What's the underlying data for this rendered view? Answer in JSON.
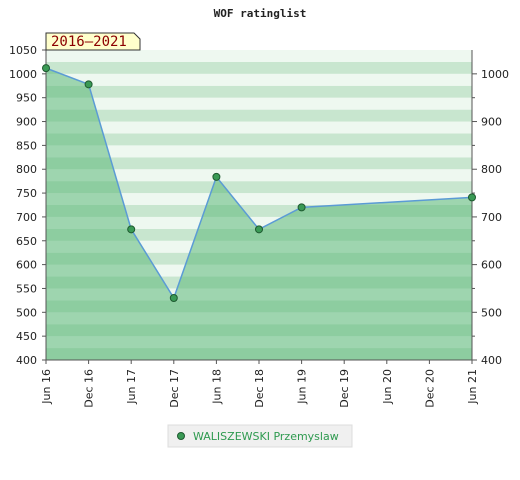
{
  "chart_data": {
    "type": "area",
    "title": "WOF ratinglist",
    "badge": "2016–2021",
    "x_ticks": [
      "Jun 16",
      "Dec 16",
      "Jun 17",
      "Dec 17",
      "Jun 18",
      "Dec 18",
      "Jun 19",
      "Dec 19",
      "Jun 20",
      "Dec 20",
      "Jun 21"
    ],
    "ylim": [
      400,
      1050
    ],
    "y_ticks_left": [
      400,
      450,
      500,
      550,
      600,
      650,
      700,
      750,
      800,
      850,
      900,
      950,
      1000,
      1050
    ],
    "y_ticks_right": [
      400,
      500,
      600,
      700,
      800,
      900,
      1000
    ],
    "series": [
      {
        "name": "WALISZEWSKI Przemyslaw",
        "x": [
          "Jun 16",
          "Dec 16",
          "Jun 17",
          "Dec 17",
          "Jun 18",
          "Dec 18",
          "Jun 19",
          "Jun 21"
        ],
        "values": [
          1012,
          978,
          674,
          530,
          784,
          674,
          720,
          741
        ]
      }
    ],
    "legend_position": "bottom",
    "grid": "horizontal bands",
    "colors": {
      "line": "#5b9bd5",
      "fill": "#5cb87a",
      "marker": "#3a9a55",
      "band_dark": "#c8e6cf",
      "band_light": "#eef8f0",
      "badge_bg": "#ffffcc"
    }
  }
}
